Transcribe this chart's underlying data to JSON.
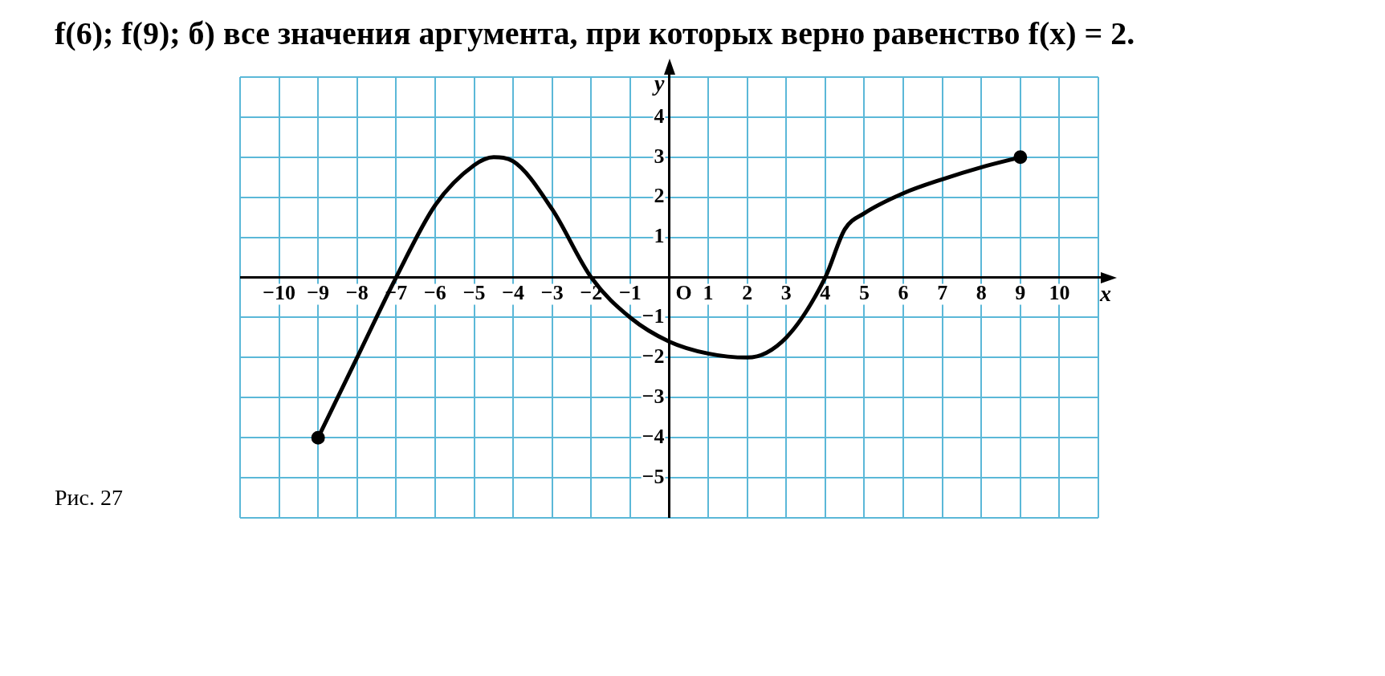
{
  "chart_data": {
    "type": "line",
    "title": "f(6); f(9); б) все значения аргумента, при которых верно равенство f(x) = 2.",
    "xlabel": "x",
    "ylabel": "y",
    "annotations": [
      "Рис. 27",
      "O"
    ],
    "xlim": [
      -11,
      11
    ],
    "ylim": [
      -6,
      5
    ],
    "xticks": [
      {
        "value": -11,
        "label": null
      },
      -10,
      -9,
      -8,
      -7,
      -6,
      -5,
      -4,
      -3,
      -2,
      -1,
      {
        "value": 0,
        "label": null
      },
      1,
      2,
      3,
      4,
      5,
      6,
      7,
      8,
      9,
      10,
      {
        "value": 11,
        "label": null
      }
    ],
    "yticks": [
      {
        "value": -6,
        "label": null
      },
      -5,
      -4,
      -3,
      -2,
      -1,
      {
        "value": 0,
        "label": null
      },
      1,
      2,
      3,
      4,
      {
        "value": 5,
        "label": null
      }
    ],
    "grid": true,
    "legend": false,
    "series": [
      {
        "color": "#000000",
        "x": [
          -9,
          -8,
          -7,
          -6,
          -5,
          -4.5,
          -4,
          -3,
          -2,
          -1,
          0,
          1,
          2,
          3,
          4,
          4.5,
          5,
          6,
          7,
          8,
          9
        ],
        "values": [
          -4,
          -2,
          0,
          1.8,
          2.8,
          3,
          2.9,
          1.7,
          0,
          -1,
          -1.6,
          -1.9,
          -2,
          -1.5,
          0,
          1.2,
          1.6,
          2.1,
          2.45,
          2.75,
          3
        ]
      }
    ]
  }
}
